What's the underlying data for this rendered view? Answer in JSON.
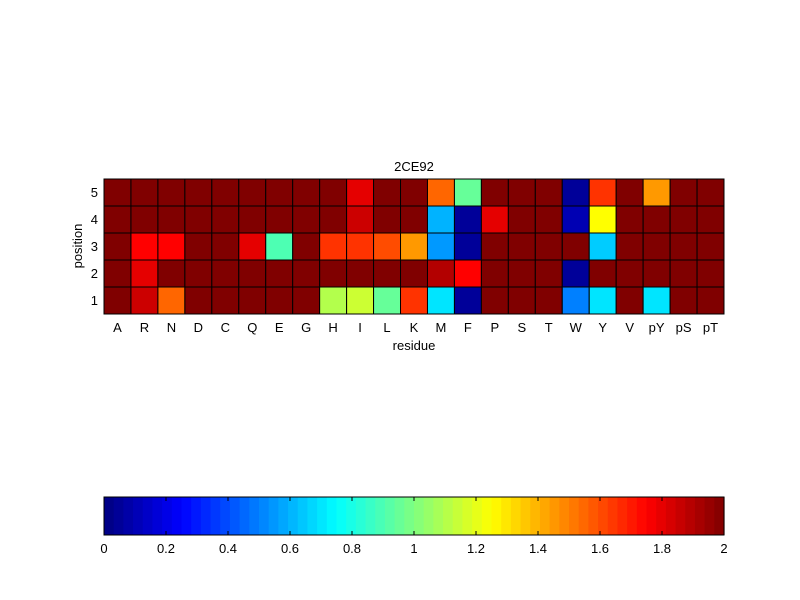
{
  "chart_data": [
    {
      "type": "heatmap",
      "title": "2CE92",
      "xlabel": "residue",
      "ylabel": "position",
      "x_categories": [
        "A",
        "R",
        "N",
        "D",
        "C",
        "Q",
        "E",
        "G",
        "H",
        "I",
        "L",
        "K",
        "M",
        "F",
        "P",
        "S",
        "T",
        "W",
        "Y",
        "V",
        "pY",
        "pS",
        "pT"
      ],
      "y_categories": [
        "5",
        "4",
        "3",
        "2",
        "1"
      ],
      "value_range": [
        0,
        2
      ],
      "colormap": "jet",
      "grid": true,
      "values": [
        [
          2,
          2,
          2,
          2,
          2,
          2,
          2,
          2,
          2,
          1.8,
          2,
          2,
          1.55,
          0.95,
          2,
          2,
          2,
          0.05,
          1.65,
          2,
          1.45,
          2,
          2
        ],
        [
          2,
          2,
          2,
          2,
          2,
          2,
          2,
          2,
          2,
          1.85,
          2,
          2,
          0.6,
          0.05,
          1.8,
          2,
          2,
          0.1,
          1.25,
          2,
          2,
          2,
          2
        ],
        [
          2,
          1.75,
          1.75,
          2,
          2,
          1.8,
          0.9,
          2,
          1.65,
          1.65,
          1.6,
          1.45,
          0.55,
          0.05,
          2,
          2,
          2,
          2,
          0.65,
          2,
          2,
          2,
          2
        ],
        [
          2,
          1.8,
          2,
          2,
          2,
          2,
          2,
          2,
          2,
          2,
          2,
          2,
          1.9,
          1.75,
          2,
          2,
          2,
          0.05,
          2,
          2,
          2,
          2,
          2
        ],
        [
          2,
          1.85,
          1.55,
          2,
          2,
          2,
          2,
          2,
          1.1,
          1.15,
          0.95,
          1.65,
          0.7,
          0.05,
          2,
          2,
          2,
          0.5,
          0.7,
          2,
          0.7,
          2,
          2
        ]
      ]
    },
    {
      "type": "colorbar",
      "range": [
        0,
        2
      ],
      "ticks": [
        "0",
        "0.2",
        "0.4",
        "0.6",
        "0.8",
        "1",
        "1.2",
        "1.4",
        "1.6",
        "1.8",
        "2"
      ],
      "colormap": "jet"
    }
  ]
}
